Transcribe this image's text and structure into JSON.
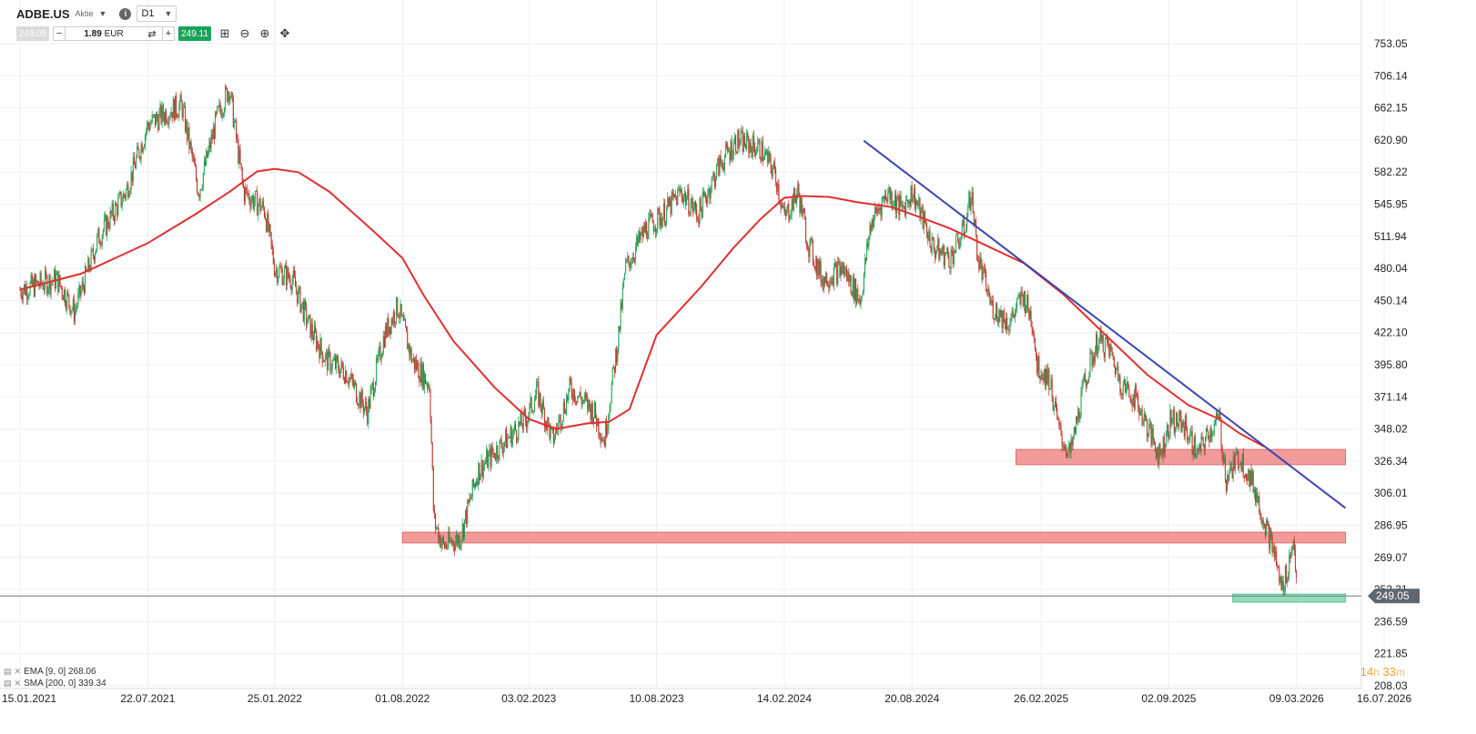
{
  "toolbar": {
    "symbol": "ADBE.US",
    "symbol_type": "Aktie",
    "timeframe": "D1",
    "sell_price": "249.05",
    "quantity": "1.89",
    "currency": "EUR",
    "buy_price": "249.11"
  },
  "legend": {
    "ema": "EMA [9, 0] 268.06",
    "sma": "SMA [200, 0] 339.34"
  },
  "timer": {
    "hours": "14",
    "h_unit": "h",
    "minutes": "33",
    "m_unit": "m"
  },
  "colors": {
    "bull": "#26a65b",
    "bear": "#c0392b",
    "sma": "#e03030",
    "trendline": "#3a46b0",
    "resistance_zone": "#f08a8a",
    "support_zone": "#7fd6b0",
    "current_price_line": "#777777"
  },
  "chart_data": {
    "type": "candlestick",
    "symbol": "ADBE.US",
    "timeframe": "D1",
    "current_price": 249.05,
    "y_ticks": [
      "753.05",
      "706.14",
      "662.15",
      "620.90",
      "582.22",
      "545.95",
      "511.94",
      "480.04",
      "450.14",
      "422.10",
      "395.80",
      "371.14",
      "348.02",
      "326.34",
      "306.01",
      "286.95",
      "269.07",
      "252.31",
      "236.59",
      "221.85",
      "208.03"
    ],
    "x_ticks": [
      "15.01.2021",
      "22.07.2021",
      "25.01.2022",
      "01.08.2022",
      "03.02.2023",
      "10.08.2023",
      "14.02.2024",
      "20.08.2024",
      "26.02.2025",
      "02.09.2025",
      "09.03.2026",
      "16.07.2026"
    ],
    "log_scale": true,
    "grid": true,
    "price_path": [
      [
        "2021-01-15",
        460
      ],
      [
        "2021-03-10",
        470
      ],
      [
        "2021-04-05",
        440
      ],
      [
        "2021-05-10",
        510
      ],
      [
        "2021-06-20",
        560
      ],
      [
        "2021-07-22",
        640
      ],
      [
        "2021-08-25",
        660
      ],
      [
        "2021-09-10",
        665
      ],
      [
        "2021-10-05",
        560
      ],
      [
        "2021-11-01",
        650
      ],
      [
        "2021-11-19",
        690
      ],
      [
        "2021-12-10",
        560
      ],
      [
        "2022-01-10",
        540
      ],
      [
        "2022-01-25",
        480
      ],
      [
        "2022-02-20",
        470
      ],
      [
        "2022-03-15",
        430
      ],
      [
        "2022-04-10",
        400
      ],
      [
        "2022-05-10",
        390
      ],
      [
        "2022-06-10",
        360
      ],
      [
        "2022-07-05",
        420
      ],
      [
        "2022-07-25",
        445
      ],
      [
        "2022-08-15",
        400
      ],
      [
        "2022-09-10",
        380
      ],
      [
        "2022-09-16",
        290
      ],
      [
        "2022-09-30",
        275
      ],
      [
        "2022-10-25",
        280
      ],
      [
        "2022-11-20",
        320
      ],
      [
        "2022-12-20",
        335
      ],
      [
        "2023-01-30",
        355
      ],
      [
        "2023-02-15",
        375
      ],
      [
        "2023-03-10",
        340
      ],
      [
        "2023-04-05",
        378
      ],
      [
        "2023-05-10",
        360
      ],
      [
        "2023-05-25",
        340
      ],
      [
        "2023-06-15",
        420
      ],
      [
        "2023-06-25",
        480
      ],
      [
        "2023-07-25",
        520
      ],
      [
        "2023-08-20",
        535
      ],
      [
        "2023-09-15",
        560
      ],
      [
        "2023-10-10",
        535
      ],
      [
        "2023-11-10",
        590
      ],
      [
        "2023-12-05",
        620
      ],
      [
        "2024-01-10",
        610
      ],
      [
        "2024-02-01",
        580
      ],
      [
        "2024-02-14",
        530
      ],
      [
        "2024-03-05",
        560
      ],
      [
        "2024-03-20",
        505
      ],
      [
        "2024-04-10",
        470
      ],
      [
        "2024-05-10",
        480
      ],
      [
        "2024-06-05",
        450
      ],
      [
        "2024-06-20",
        525
      ],
      [
        "2024-07-15",
        560
      ],
      [
        "2024-08-05",
        540
      ],
      [
        "2024-08-20",
        560
      ],
      [
        "2024-09-10",
        520
      ],
      [
        "2024-09-20",
        500
      ],
      [
        "2024-10-15",
        490
      ],
      [
        "2024-11-05",
        520
      ],
      [
        "2024-11-15",
        560
      ],
      [
        "2024-11-25",
        490
      ],
      [
        "2024-12-15",
        445
      ],
      [
        "2025-01-10",
        430
      ],
      [
        "2025-01-30",
        455
      ],
      [
        "2025-02-14",
        430
      ],
      [
        "2025-02-20",
        395
      ],
      [
        "2025-03-10",
        385
      ],
      [
        "2025-03-25",
        345
      ],
      [
        "2025-04-10",
        330
      ],
      [
        "2025-04-30",
        380
      ],
      [
        "2025-05-20",
        415
      ],
      [
        "2025-06-05",
        410
      ],
      [
        "2025-06-25",
        380
      ],
      [
        "2025-07-15",
        370
      ],
      [
        "2025-08-05",
        345
      ],
      [
        "2025-08-20",
        330
      ],
      [
        "2025-09-05",
        355
      ],
      [
        "2025-09-25",
        350
      ],
      [
        "2025-10-15",
        330
      ],
      [
        "2025-10-30",
        345
      ],
      [
        "2025-11-15",
        355
      ],
      [
        "2025-11-25",
        315
      ],
      [
        "2025-12-15",
        330
      ],
      [
        "2026-01-05",
        310
      ],
      [
        "2026-01-20",
        290
      ],
      [
        "2026-02-05",
        270
      ],
      [
        "2026-02-15",
        252
      ],
      [
        "2026-02-25",
        265
      ],
      [
        "2026-03-05",
        280
      ],
      [
        "2026-03-10",
        249.05
      ]
    ],
    "sma_200_path": [
      [
        "2021-01-15",
        460
      ],
      [
        "2021-04-15",
        475
      ],
      [
        "2021-07-22",
        505
      ],
      [
        "2021-09-30",
        535
      ],
      [
        "2021-11-20",
        560
      ],
      [
        "2021-12-30",
        583
      ],
      [
        "2022-01-25",
        586
      ],
      [
        "2022-03-01",
        582
      ],
      [
        "2022-04-15",
        560
      ],
      [
        "2022-06-15",
        520
      ],
      [
        "2022-08-01",
        490
      ],
      [
        "2022-09-01",
        455
      ],
      [
        "2022-10-15",
        415
      ],
      [
        "2022-12-15",
        378
      ],
      [
        "2023-02-03",
        355
      ],
      [
        "2023-03-15",
        348
      ],
      [
        "2023-05-01",
        352
      ],
      [
        "2023-06-01",
        353
      ],
      [
        "2023-07-01",
        362
      ],
      [
        "2023-08-10",
        420
      ],
      [
        "2023-10-15",
        463
      ],
      [
        "2023-12-01",
        500
      ],
      [
        "2024-01-10",
        530
      ],
      [
        "2024-02-14",
        553
      ],
      [
        "2024-03-10",
        555
      ],
      [
        "2024-04-20",
        554
      ],
      [
        "2024-06-01",
        548
      ],
      [
        "2024-07-20",
        543
      ],
      [
        "2024-08-20",
        535
      ],
      [
        "2024-10-15",
        520
      ],
      [
        "2024-12-15",
        500
      ],
      [
        "2025-02-01",
        485
      ],
      [
        "2025-04-01",
        455
      ],
      [
        "2025-06-01",
        420
      ],
      [
        "2025-08-01",
        388
      ],
      [
        "2025-10-01",
        365
      ],
      [
        "2025-11-15",
        355
      ],
      [
        "2025-12-15",
        345
      ],
      [
        "2026-01-20",
        336
      ]
    ],
    "trendline": [
      [
        "2024-06-10",
        620
      ],
      [
        "2026-05-20",
        297
      ]
    ],
    "zones": [
      {
        "type": "resistance",
        "from": "2025-01-20",
        "to": "2026-05-20",
        "low": 324,
        "high": 334
      },
      {
        "type": "resistance",
        "from": "2022-08-01",
        "to": "2026-05-20",
        "low": 277,
        "high": 283
      },
      {
        "type": "support",
        "from": "2025-12-05",
        "to": "2026-05-20",
        "low": 246,
        "high": 250
      }
    ]
  }
}
